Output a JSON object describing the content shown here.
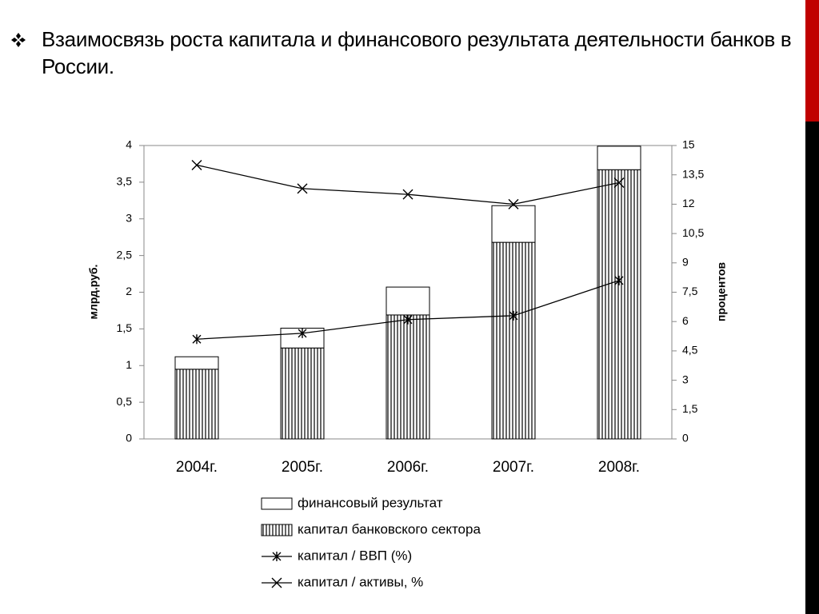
{
  "chart_data": {
    "type": "bar",
    "stacked": true,
    "title": "Взаимосвязь роста капитала и финансового результата деятельности банков в России.",
    "y_label": "млрд.руб.",
    "y2_label": "процентов",
    "categories": [
      "2004г.",
      "2005г.",
      "2006г.",
      "2007г.",
      "2008г."
    ],
    "ylim": [
      0,
      4
    ],
    "yticks": [
      0,
      {
        "value": 0.5,
        "label": "0,5"
      },
      1,
      {
        "value": 1.5,
        "label": "1,5"
      },
      2,
      {
        "value": 2.5,
        "label": "2,5"
      },
      3,
      {
        "value": 3.5,
        "label": "3,5"
      },
      4
    ],
    "y2lim": [
      0,
      15
    ],
    "y2ticks": [
      0,
      {
        "value": 1.5,
        "label": "1,5"
      },
      3,
      {
        "value": 4.5,
        "label": "4,5"
      },
      6,
      {
        "value": 7.5,
        "label": "7,5"
      },
      9,
      {
        "value": 10.5,
        "label": "10,5"
      },
      12,
      {
        "value": 13.5,
        "label": "13,5"
      },
      15
    ],
    "series": [
      {
        "name": "финансовый результат",
        "type": "bar",
        "fill": "white",
        "color": "#000000",
        "stack_order": 1,
        "values": [
          0.17,
          0.27,
          0.38,
          0.5,
          0.32
        ]
      },
      {
        "name": "капитал банковского сектора",
        "type": "bar",
        "fill": "hatch",
        "color": "#000000",
        "stack_order": 0,
        "values": [
          0.95,
          1.24,
          1.69,
          2.68,
          3.67
        ]
      },
      {
        "name": "капитал / ВВП (%)",
        "type": "line",
        "axis": "y2",
        "marker": "asterisk",
        "color": "#000000",
        "values": [
          5.1,
          5.4,
          6.1,
          6.3,
          8.1
        ]
      },
      {
        "name": "капитал / активы, %",
        "type": "line",
        "axis": "y2",
        "marker": "x",
        "color": "#000000",
        "values": [
          14.0,
          12.8,
          12.5,
          12.0,
          13.1
        ]
      }
    ]
  }
}
